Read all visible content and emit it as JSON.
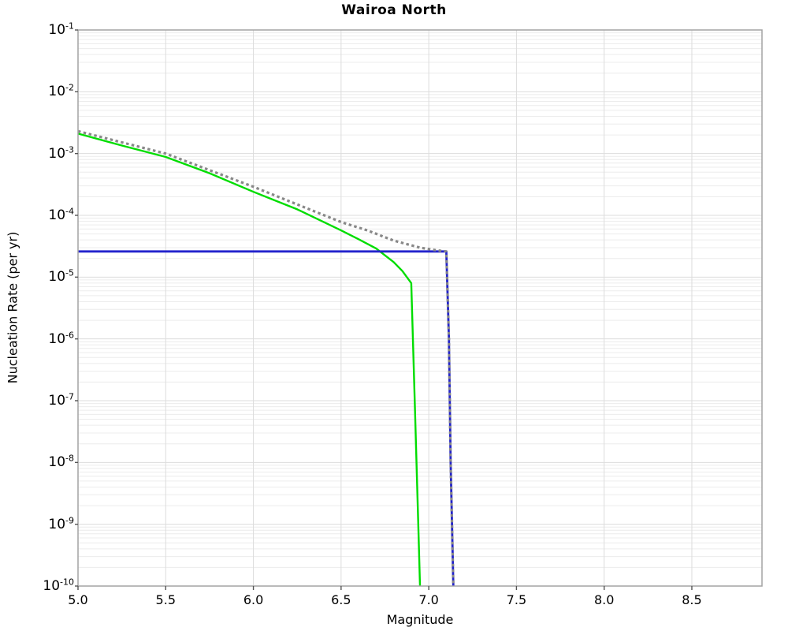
{
  "chart": {
    "title": "Wairoa North",
    "xlabel": "Magnitude",
    "ylabel": "Nucleation Rate (per yr)"
  },
  "chart_data": {
    "type": "line",
    "title": "Wairoa North",
    "xlabel": "Magnitude",
    "ylabel": "Nucleation Rate (per yr)",
    "xlim": [
      5.0,
      8.9
    ],
    "ylim": [
      1e-10,
      0.1
    ],
    "yscale": "log",
    "grid": true,
    "legend": "none",
    "x_ticks": [
      5.0,
      5.5,
      6.0,
      6.5,
      7.0,
      7.5,
      8.0,
      8.5
    ],
    "x_tick_labels": [
      "5.0",
      "5.5",
      "6.0",
      "6.5",
      "7.0",
      "7.5",
      "8.0",
      "8.5"
    ],
    "y_tick_base": "10",
    "y_tick_exponents": [
      "-1",
      "-2",
      "-3",
      "-4",
      "-5",
      "-6",
      "-7",
      "-8",
      "-9",
      "-10"
    ],
    "colors": {
      "green_line": "#00dd00",
      "blue_line": "#2222cc",
      "gray_dotted": "#888888",
      "frame": "#a3a3a3",
      "grid_major": "#dcdcdc",
      "grid_minor": "#ececec",
      "tick_mark": "#555555"
    },
    "series": [
      {
        "name": "green-solid-curve",
        "color": "#00dd00",
        "style": "solid",
        "width": 2.4,
        "points": [
          [
            5.0,
            0.0021
          ],
          [
            5.25,
            0.00135
          ],
          [
            5.5,
            0.00088
          ],
          [
            5.75,
            0.00048
          ],
          [
            6.0,
            0.00024
          ],
          [
            6.25,
            0.000125
          ],
          [
            6.5,
            5.7e-05
          ],
          [
            6.6,
            4.1e-05
          ],
          [
            6.7,
            2.9e-05
          ],
          [
            6.8,
            1.75e-05
          ],
          [
            6.85,
            1.25e-05
          ],
          [
            6.9,
            8e-06
          ],
          [
            6.92,
            1e-07
          ],
          [
            6.94,
            1e-09
          ],
          [
            6.95,
            1e-10
          ]
        ]
      },
      {
        "name": "blue-solid-curve",
        "color": "#2222cc",
        "style": "solid",
        "width": 2.8,
        "points": [
          [
            5.0,
            2.6e-05
          ],
          [
            7.1,
            2.6e-05
          ],
          [
            7.115,
            1e-06
          ],
          [
            7.125,
            1e-08
          ],
          [
            7.14,
            1e-10
          ]
        ]
      },
      {
        "name": "gray-dotted-curve",
        "color": "#888888",
        "style": "dotted",
        "width": 3.2,
        "points": [
          [
            5.0,
            0.0023
          ],
          [
            5.5,
            0.001
          ],
          [
            6.0,
            0.00029
          ],
          [
            6.25,
            0.00015
          ],
          [
            6.5,
            7.8e-05
          ],
          [
            6.65,
            5.7e-05
          ],
          [
            6.8,
            3.9e-05
          ],
          [
            6.95,
            3e-05
          ],
          [
            7.05,
            2.7e-05
          ],
          [
            7.1,
            2.6e-05
          ],
          [
            7.115,
            1e-06
          ],
          [
            7.125,
            1e-08
          ],
          [
            7.14,
            1e-10
          ]
        ]
      }
    ]
  }
}
